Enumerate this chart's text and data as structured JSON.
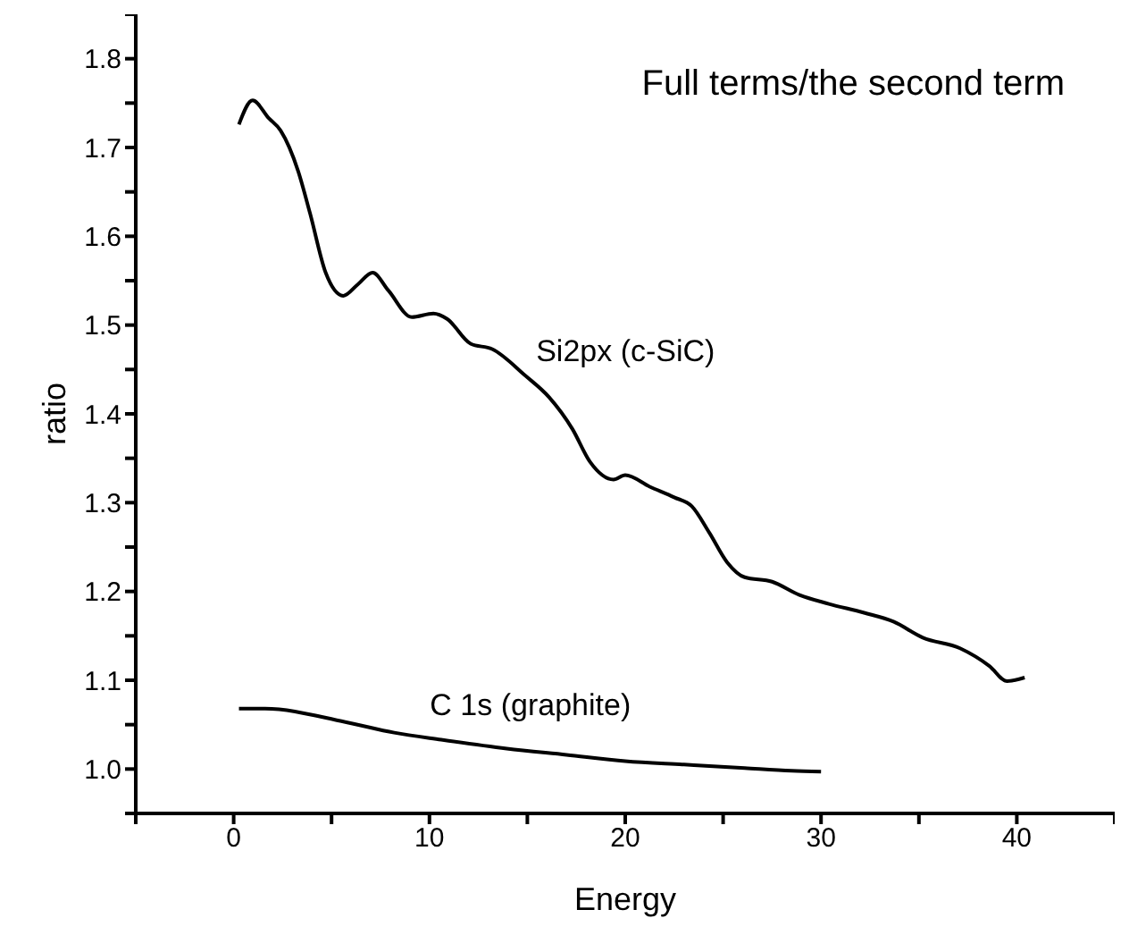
{
  "chart_data": {
    "type": "line",
    "title": "Full terms/the second term",
    "xlabel": "Energy",
    "ylabel": "ratio",
    "xlim": [
      -5,
      45
    ],
    "xticks": [
      {
        "value": -5,
        "label": null
      },
      0,
      {
        "value": 5,
        "label": null
      },
      10,
      {
        "value": 15,
        "label": null
      },
      20,
      {
        "value": 25,
        "label": null
      },
      30,
      {
        "value": 35,
        "label": null
      },
      40,
      {
        "value": 45,
        "label": null
      }
    ],
    "ylim": [
      0.95,
      1.85
    ],
    "yticks": [
      {
        "value": 0.95,
        "label": null
      },
      {
        "value": 1.0,
        "label": "1.0"
      },
      {
        "value": 1.05,
        "label": null
      },
      {
        "value": 1.1,
        "label": "1.1"
      },
      {
        "value": 1.15,
        "label": null
      },
      {
        "value": 1.2,
        "label": "1.2"
      },
      {
        "value": 1.25,
        "label": null
      },
      {
        "value": 1.3,
        "label": "1.3"
      },
      {
        "value": 1.35,
        "label": null
      },
      {
        "value": 1.4,
        "label": "1.4"
      },
      {
        "value": 1.45,
        "label": null
      },
      {
        "value": 1.5,
        "label": "1.5"
      },
      {
        "value": 1.55,
        "label": null
      },
      {
        "value": 1.6,
        "label": "1.6"
      },
      {
        "value": 1.65,
        "label": null
      },
      {
        "value": 1.7,
        "label": "1.7"
      },
      {
        "value": 1.75,
        "label": null
      },
      {
        "value": 1.8,
        "label": "1.8"
      },
      {
        "value": 1.85,
        "label": null
      }
    ],
    "marker": "none",
    "line_style": "solid",
    "series": [
      {
        "name": "Si2px (c-SiC)",
        "color": "#000000",
        "x": [
          0.27,
          0.97,
          1.79,
          2.4,
          3.3,
          3.9,
          4.7,
          5.6,
          6.35,
          7.1,
          7.9,
          9.1,
          10.2,
          10.9,
          12.1,
          13.2,
          14.9,
          16.1,
          17.3,
          18.2,
          19.4,
          20.0,
          21.25,
          22.5,
          23.4,
          24.3,
          25.2,
          26.1,
          27.5,
          28.9,
          30.4,
          32.2,
          33.7,
          35.2,
          37.1,
          38.6,
          39.5,
          40.4
        ],
        "values": [
          1.726,
          1.753,
          1.733,
          1.719,
          1.673,
          1.626,
          1.559,
          1.533,
          1.546,
          1.559,
          1.539,
          1.509,
          1.513,
          1.507,
          1.479,
          1.473,
          1.443,
          1.419,
          1.383,
          1.346,
          1.326,
          1.331,
          1.318,
          1.306,
          1.296,
          1.266,
          1.233,
          1.216,
          1.211,
          1.196,
          1.186,
          1.176,
          1.166,
          1.148,
          1.136,
          1.116,
          1.099,
          1.103
        ]
      },
      {
        "name": "C 1s (graphite)",
        "color": "#000000",
        "x": [
          0.27,
          1.6,
          5.7,
          8.2,
          10.6,
          13.95,
          17.0,
          20.0,
          23.0,
          26.1,
          28.5,
          30.0
        ],
        "values": [
          1.068,
          1.068,
          1.053,
          1.041,
          1.033,
          1.023,
          1.016,
          1.009,
          1.005,
          1.001,
          0.998,
          0.997
        ]
      }
    ]
  }
}
